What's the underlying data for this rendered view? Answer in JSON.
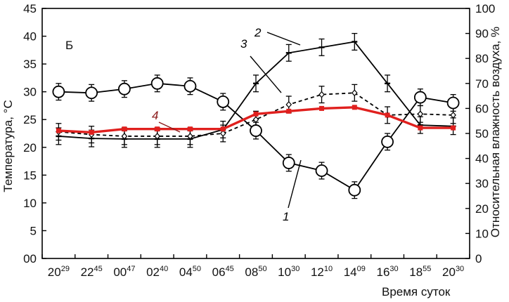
{
  "chart_data": {
    "type": "line",
    "panel_label": "Б",
    "xlabel": "Время суток",
    "ylabel_left": "Температура, °С",
    "ylabel_right": "Относительная влажность воздуха, %",
    "x_ticks": [
      {
        "main": "20",
        "sup": "29"
      },
      {
        "main": "22",
        "sup": "45"
      },
      {
        "main": "00",
        "sup": "47"
      },
      {
        "main": "02",
        "sup": "40"
      },
      {
        "main": "04",
        "sup": "50"
      },
      {
        "main": "06",
        "sup": "45"
      },
      {
        "main": "08",
        "sup": "50"
      },
      {
        "main": "10",
        "sup": "30"
      },
      {
        "main": "12",
        "sup": "10"
      },
      {
        "main": "14",
        "sup": "09"
      },
      {
        "main": "16",
        "sup": "30"
      },
      {
        "main": "18",
        "sup": "55"
      },
      {
        "main": "20",
        "sup": "30"
      }
    ],
    "y_left": {
      "min": 0,
      "max": 45,
      "step": 5,
      "ticks": [
        "00",
        "5",
        "10",
        "15",
        "20",
        "25",
        "30",
        "35",
        "40",
        "45"
      ]
    },
    "y_right": {
      "min": 0,
      "max": 100,
      "step": 10,
      "ticks": [
        "0",
        "10",
        "20",
        "30",
        "40",
        "50",
        "60",
        "70",
        "80",
        "90",
        "100"
      ]
    },
    "series": [
      {
        "name": "1",
        "axis": "left",
        "style": "solid-circle",
        "color": "#000000",
        "values": [
          30,
          29.8,
          30.5,
          31.5,
          31,
          28.2,
          23,
          17.2,
          15.8,
          12.3,
          21,
          29,
          28
        ]
      },
      {
        "name": "2",
        "axis": "left",
        "style": "solid-dash",
        "color": "#000000",
        "values": [
          22,
          21.6,
          21.5,
          21.5,
          21.5,
          23.2,
          31.5,
          37,
          38,
          39,
          31.5,
          24,
          23.8
        ]
      },
      {
        "name": "3",
        "axis": "left",
        "style": "dashed-diamond",
        "color": "#000000",
        "values": [
          22.8,
          22.3,
          22,
          22,
          22,
          22.5,
          25,
          27.7,
          29.5,
          29.8,
          25.8,
          26,
          25.8
        ]
      },
      {
        "name": "4",
        "axis": "left",
        "style": "red-thick",
        "color": "#e0201e",
        "label_color": "#8b1a1a",
        "values": [
          23,
          22.7,
          23.3,
          23.3,
          23.3,
          23.3,
          26,
          26.5,
          27,
          27.2,
          25.8,
          23.5,
          23.5
        ]
      }
    ],
    "error_bar": 1.5
  }
}
